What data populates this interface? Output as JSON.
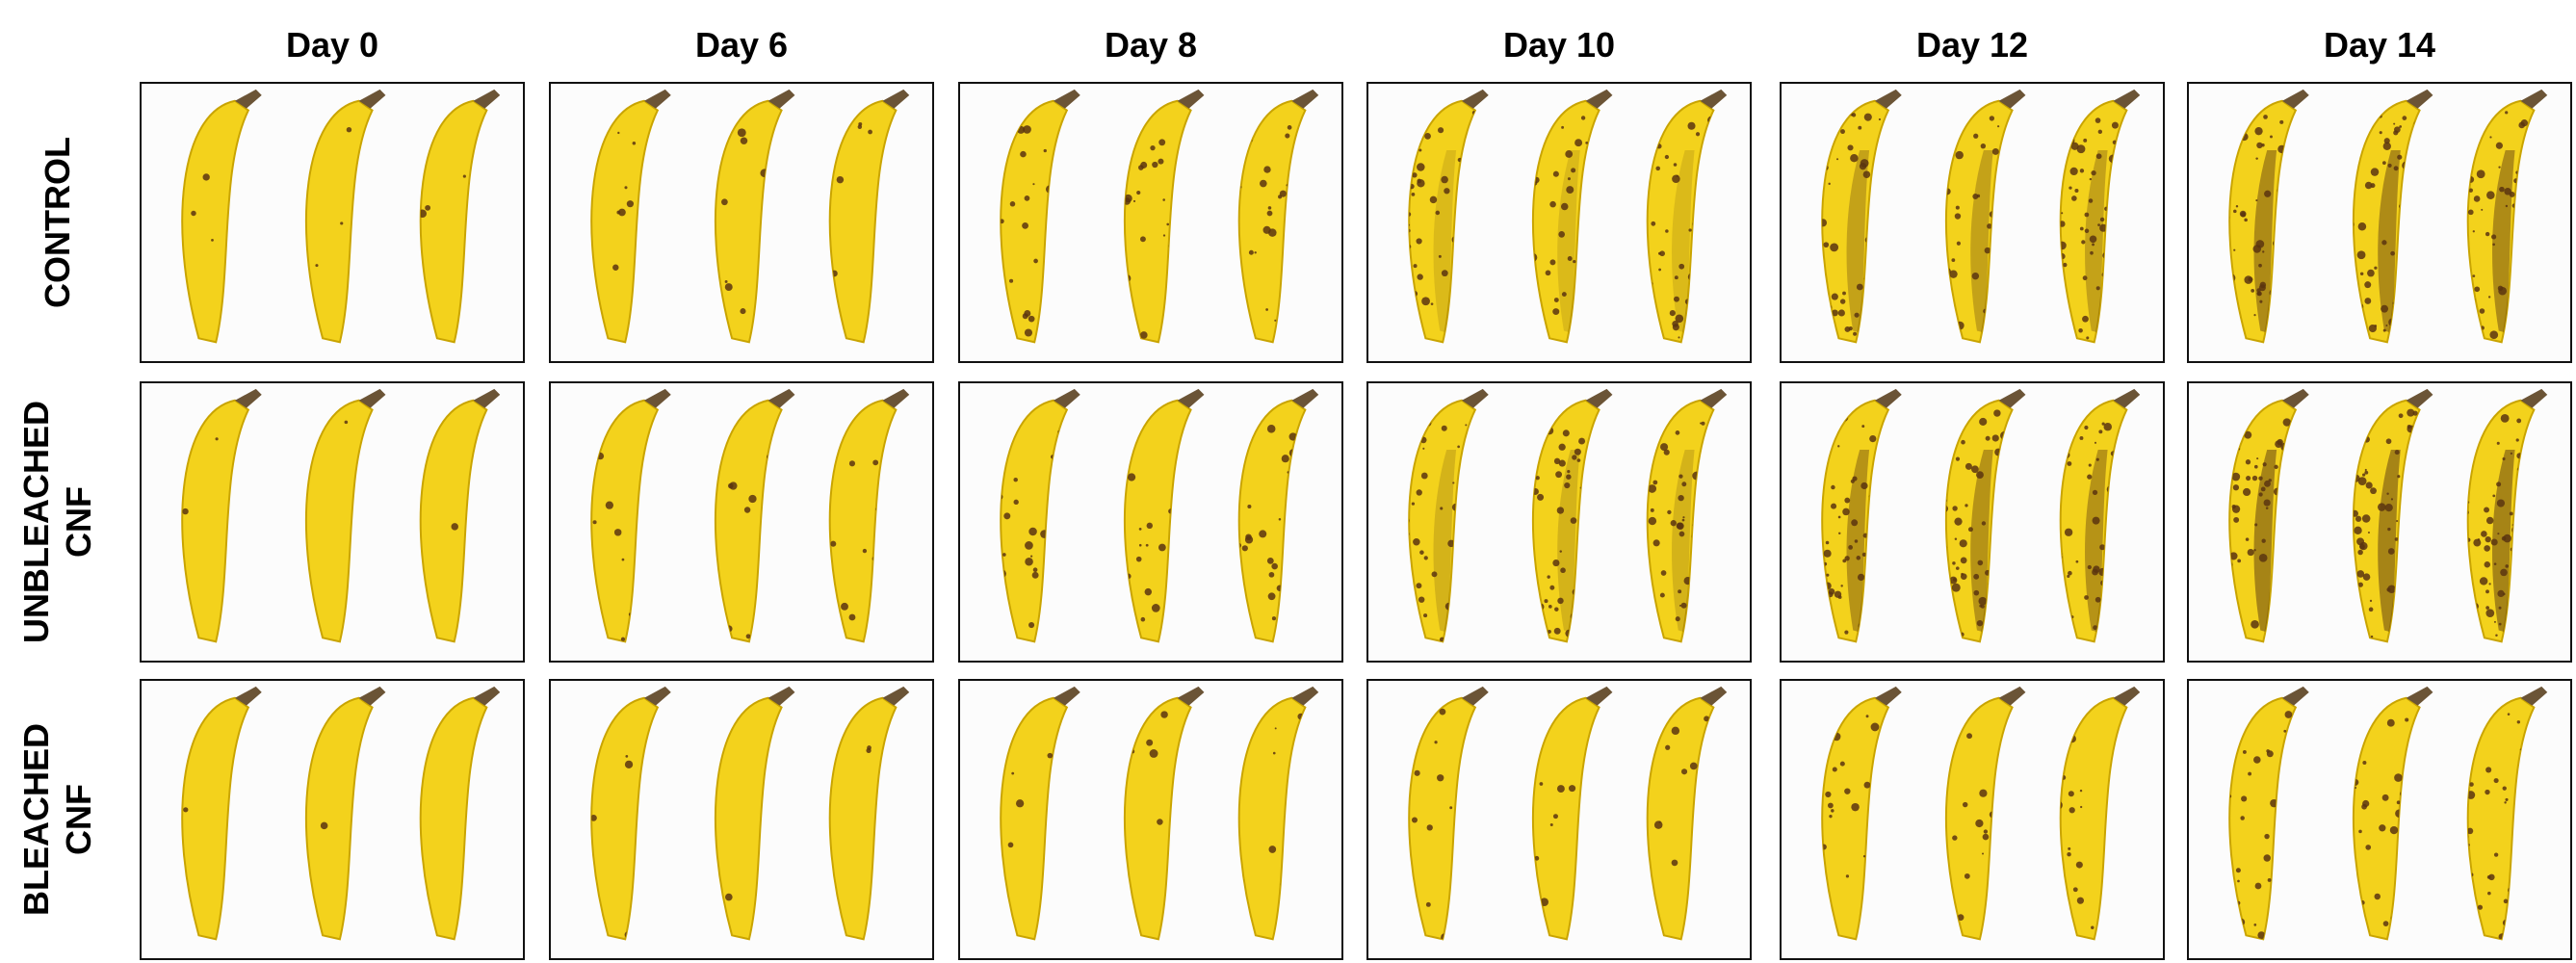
{
  "columns": [
    {
      "label": "Day 0"
    },
    {
      "label": "Day 6"
    },
    {
      "label": "Day 8"
    },
    {
      "label": "Day 10"
    },
    {
      "label": "Day 12"
    },
    {
      "label": "Day 14"
    }
  ],
  "rows": [
    {
      "label": "CONTROL"
    },
    {
      "label": "UNBLEACHED\nCNF"
    },
    {
      "label": "BLEACHED\nCNF"
    }
  ],
  "colors": {
    "banana_yellow": "#f3d21c",
    "banana_edge": "#c9a400",
    "spot_brown": "#5a3510",
    "stem": "#6b5436"
  }
}
